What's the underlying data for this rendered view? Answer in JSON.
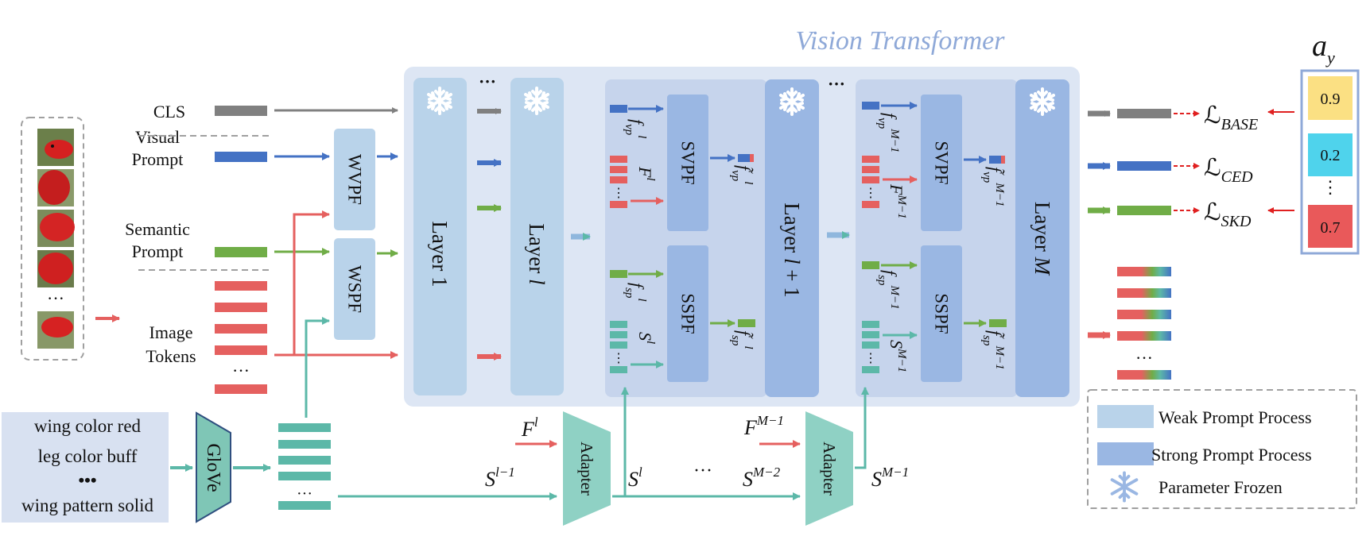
{
  "title": "Vision Transformer",
  "inputs": {
    "cls": "CLS",
    "visual_prompt": [
      "Visual",
      "Prompt"
    ],
    "semantic_prompt": [
      "Semantic",
      "Prompt"
    ],
    "image_tokens": [
      "Image",
      "Tokens"
    ]
  },
  "attributes": [
    "wing color red",
    "leg color buff",
    "•••",
    "wing pattern solid"
  ],
  "modules": {
    "glove": "GloVe",
    "wvpf": "WVPF",
    "wspf": "WSPF",
    "svpf": "SVPF",
    "sspf": "SSPF",
    "adapter": "Adapter"
  },
  "layers": {
    "layer1": "Layer 1",
    "layer_l": "Layer l",
    "layer_l1": "Layer l + 1",
    "layer_m": "Layer M"
  },
  "features": {
    "f_vp_l": "f",
    "F_l": "F",
    "S_l": "S"
  },
  "math": {
    "sup_l": "l",
    "sup_l_minus_1": "l−1",
    "sup_m_minus_1": "M−1",
    "sup_m_minus_2": "M−2",
    "sub_vp": "vp",
    "sub_sp": "sp",
    "F": "F",
    "S": "S",
    "f": "f",
    "f_tilde": "f̃",
    "ellipsis": "···",
    "vdots": "⋮"
  },
  "losses": [
    "ℒ",
    "BASE",
    "CED",
    "SKD"
  ],
  "scores": {
    "title": "a",
    "title_sub": "y",
    "values": [
      "0.9",
      "0.2",
      "0.7"
    ],
    "colors": [
      "#fbe083",
      "#4fd3ec",
      "#e9595a"
    ]
  },
  "legend": {
    "weak": "Weak Prompt Process",
    "strong": "Strong Prompt Process",
    "frozen": "Parameter Frozen"
  },
  "colors": {
    "weak": "#b9d3ea",
    "strong": "#9ab7e3",
    "vit_bg": "#dde6f4",
    "group_bg": "#c6d4ec",
    "cls": "#808080",
    "visual": "#4472c4",
    "semantic": "#70ad47",
    "image": "#e5605f",
    "teal": "#5cb8a8",
    "adapter": "#8fd1c4",
    "glove": "#7fc6b6",
    "attr_bg": "#d8e1f1",
    "title_color": "#8fa9d8"
  }
}
